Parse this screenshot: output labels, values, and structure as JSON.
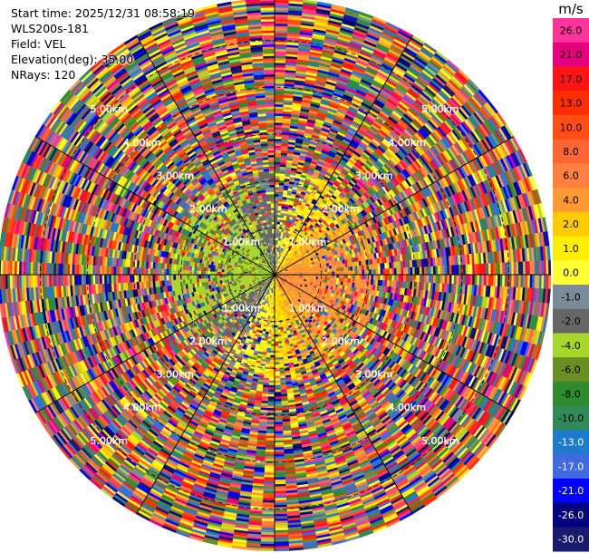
{
  "info": {
    "start_time": "Start time: 2025/12/31 08:58:19",
    "station": "WLS200s-181",
    "field": "Field: VEL",
    "elevation": "Elevation(deg): 35.00",
    "nrays": "NRays: 120"
  },
  "chart_data": {
    "type": "heatmap",
    "subtype": "polar-ppi",
    "field": "VEL",
    "unit": "m/s",
    "n_rays": 120,
    "elevation_deg": 35.0,
    "range_rings_km": [
      1,
      2,
      3,
      4,
      5
    ],
    "range_ring_labels": [
      "1.00km",
      "2.00km",
      "3.00km",
      "4.00km",
      "5.00km"
    ],
    "max_range_km": 5.9,
    "grid": true,
    "colorbar": {
      "title": "m/s",
      "ticks": [
        "26.0",
        "21.0",
        "17.0",
        "13.0",
        "10.0",
        "8.0",
        "6.0",
        "4.0",
        "2.0",
        "1.0",
        "0.0",
        "-1.0",
        "-2.0",
        "-4.0",
        "-6.0",
        "-8.0",
        "-10.0",
        "-13.0",
        "-17.0",
        "-21.0",
        "-26.0",
        "-30.0"
      ],
      "colors": [
        "#ff3399",
        "#e6007e",
        "#ff1414",
        "#ff2e00",
        "#ff4d14",
        "#ff6633",
        "#ff8040",
        "#ff9933",
        "#ffcc00",
        "#ffee00",
        "#ffff33",
        "#7a8a99",
        "#666666",
        "#a9d62a",
        "#6b8e23",
        "#2e8b2e",
        "#2e8b57",
        "#1e7acc",
        "#4169e1",
        "#0000ff",
        "#000080",
        "#191970"
      ]
    }
  }
}
